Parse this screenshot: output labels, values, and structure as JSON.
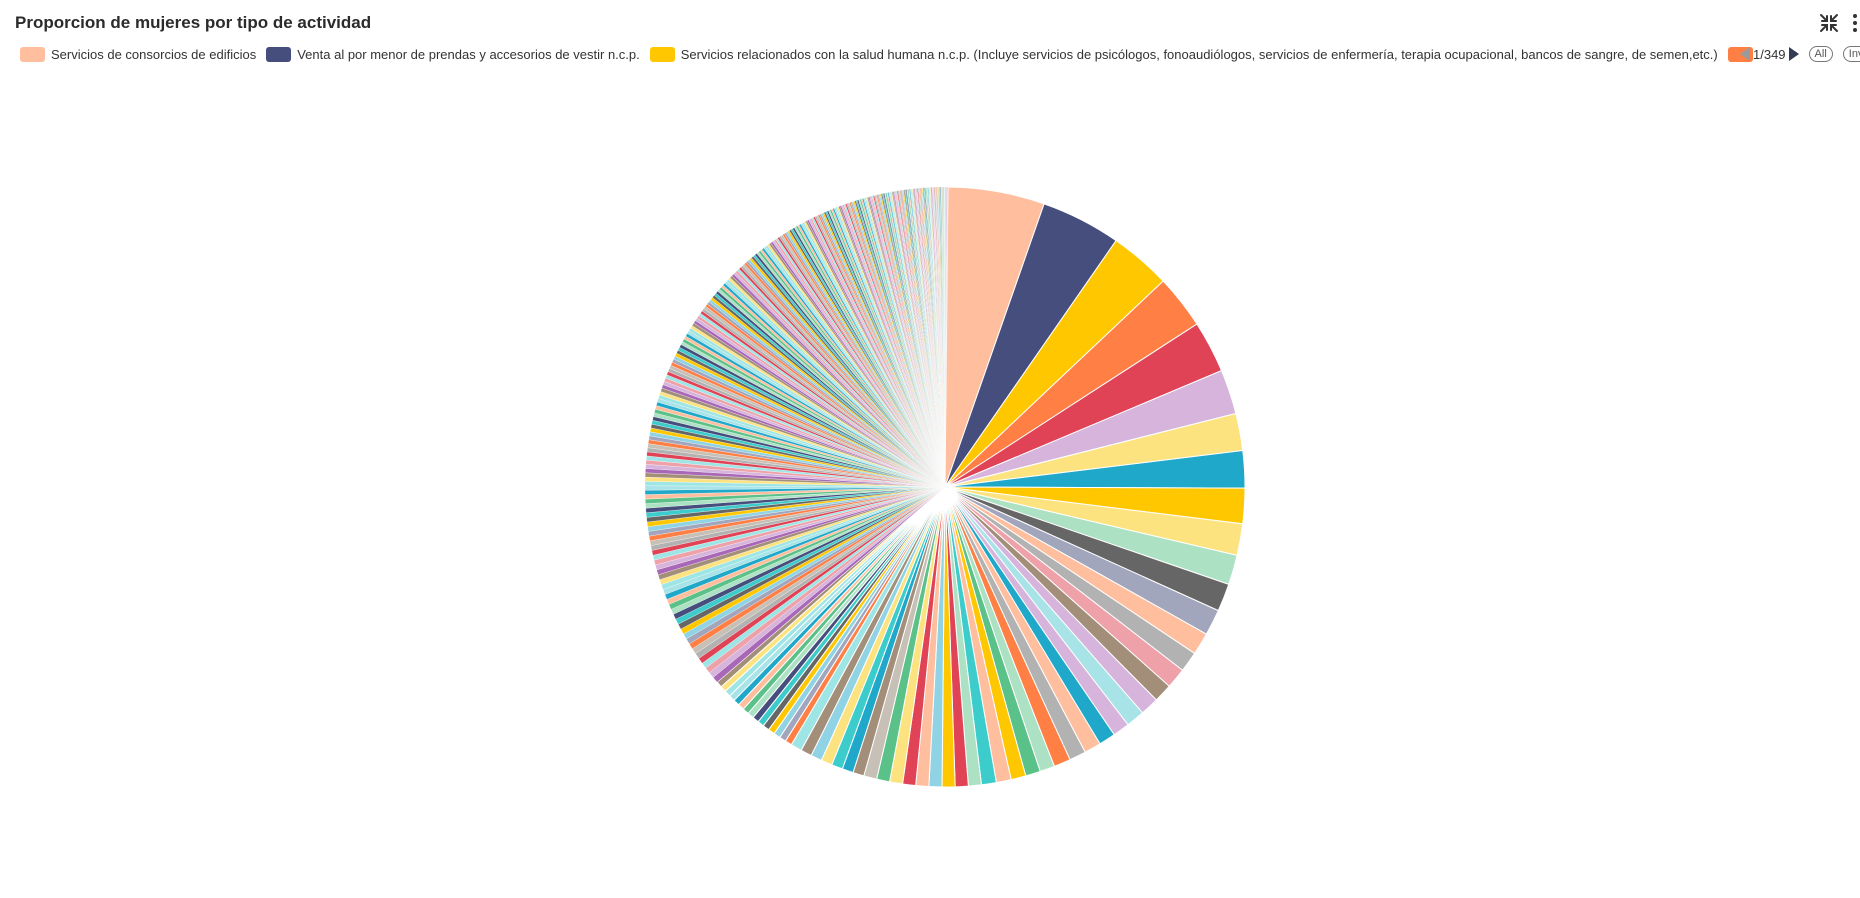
{
  "header": {
    "title": "Proporcion de mujeres por tipo de actividad",
    "collapse_icon": "collapse-icon",
    "menu_icon": "more-vertical-icon"
  },
  "legend": {
    "items": [
      {
        "label": "Servicios de consorcios de edificios",
        "color": "#FFBF9F"
      },
      {
        "label": "Venta al por menor de prendas y accesorios de vestir n.c.p.",
        "color": "#454E7C"
      },
      {
        "label": "Servicios relacionados con la salud humana n.c.p. (Incluye servicios de psicólogos, fonoaudiólogos, servicios de enfermería, terapia ocupacional, bancos de sangre, de semen,etc.)",
        "color": "#FFC700"
      },
      {
        "label": "",
        "color": "#FF7F44"
      }
    ],
    "pager": {
      "text": "1/349",
      "all_label": "All",
      "invert_label": "Inv"
    }
  },
  "chart_data": {
    "type": "pie",
    "title": "Proporcion de mujeres por tipo de actividad",
    "legend_placement": "top",
    "legend_pages": 349,
    "total_categories_approx": 349,
    "series": [
      {
        "name": "Servicios de consorcios de edificios",
        "value": 5.2,
        "color": "#FFBF9F"
      },
      {
        "name": "Venta al por menor de prendas y accesorios de vestir n.c.p.",
        "value": 4.3,
        "color": "#454E7C"
      },
      {
        "name": "Servicios relacionados con la salud humana n.c.p. (Incluye servicios de psicólogos, fonoaudiólogos, servicios de enfermería, terapia ocupacional, bancos de sangre, de semen,etc.)",
        "value": 3.3,
        "color": "#FFC700"
      },
      {
        "value": 2.9,
        "color": "#FF7F44"
      },
      {
        "value": 2.8,
        "color": "#E04355"
      },
      {
        "value": 2.4,
        "color": "#D6B4DC"
      },
      {
        "value": 2.0,
        "color": "#FDE380"
      },
      {
        "value": 2.0,
        "color": "#1FA8C9"
      },
      {
        "value": 1.9,
        "color": "#FFC700"
      },
      {
        "value": 1.7,
        "color": "#FDE380"
      },
      {
        "value": 1.6,
        "color": "#ACE1C4"
      },
      {
        "value": 1.5,
        "color": "#666666"
      },
      {
        "value": 1.4,
        "color": "#A1A6BD"
      },
      {
        "value": 1.2,
        "color": "#FFBF9F"
      },
      {
        "value": 1.1,
        "color": "#B2B2B2"
      },
      {
        "value": 1.1,
        "color": "#EFA1AA"
      },
      {
        "value": 1.0,
        "color": "#A38F79"
      },
      {
        "value": 1.0,
        "color": "#D6B4DC"
      },
      {
        "value": 1.0,
        "color": "#A7E3E7"
      },
      {
        "value": 0.9,
        "color": "#D6B4DC"
      },
      {
        "value": 0.9,
        "color": "#1FA8C9"
      },
      {
        "value": 0.9,
        "color": "#FFBF9F"
      },
      {
        "value": 0.9,
        "color": "#B2B2B2"
      },
      {
        "value": 0.9,
        "color": "#FF7F44"
      },
      {
        "value": 0.8,
        "color": "#ACE1C4"
      },
      {
        "value": 0.8,
        "color": "#5AC189"
      },
      {
        "value": 0.8,
        "color": "#FFC700"
      },
      {
        "value": 0.8,
        "color": "#FFBF9F"
      },
      {
        "value": 0.8,
        "color": "#3CCCCB"
      },
      {
        "value": 0.7,
        "color": "#ACE1C4"
      },
      {
        "value": 0.7,
        "color": "#E04355"
      },
      {
        "value": 0.7,
        "color": "#FFC700"
      },
      {
        "value": 0.7,
        "color": "#8FD3E4"
      },
      {
        "value": 0.7,
        "color": "#FFBF9F"
      },
      {
        "value": 0.7,
        "color": "#E04355"
      },
      {
        "value": 0.7,
        "color": "#FDE380"
      },
      {
        "value": 0.7,
        "color": "#5AC189"
      },
      {
        "value": 0.7,
        "color": "#C7C0B6"
      },
      {
        "value": 0.6,
        "color": "#A38F79"
      },
      {
        "value": 0.6,
        "color": "#1FA8C9"
      },
      {
        "value": 0.6,
        "color": "#3CCCCB"
      },
      {
        "value": 0.6,
        "color": "#FDE380"
      },
      {
        "value": 0.6,
        "color": "#8FD3E4"
      },
      {
        "value": 0.6,
        "color": "#A38F79"
      },
      {
        "value": 0.6,
        "color": "#9EE5E5"
      }
    ]
  }
}
